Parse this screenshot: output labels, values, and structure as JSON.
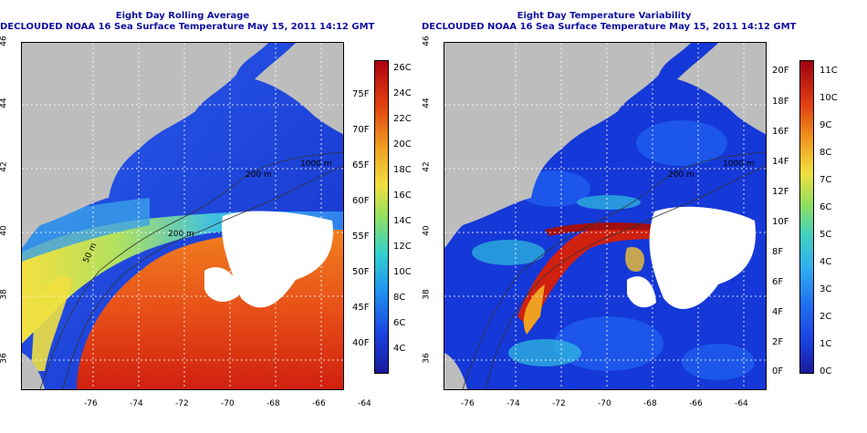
{
  "left_panel": {
    "title_line1": "Eight Day Rolling Average",
    "title_line2": "DECLOUDED NOAA 16 Sea Surface Temperature May 15, 2011 14:12 GMT",
    "colorbar_f": [
      "75F",
      "70F",
      "65F",
      "60F",
      "55F",
      "50F",
      "45F",
      "40F"
    ],
    "colorbar_c": [
      "26C",
      "24C",
      "22C",
      "20C",
      "18C",
      "16C",
      "14C",
      "12C",
      "10C",
      "8C",
      "6C",
      "4C"
    ]
  },
  "right_panel": {
    "title_line1": "Eight Day Temperature Variability",
    "title_line2": "DECLOUDED NOAA 16 Sea Surface Temperature May 15, 2011 14:12 GMT",
    "colorbar_f": [
      "20F",
      "18F",
      "16F",
      "14F",
      "12F",
      "10F",
      "8F",
      "6F",
      "4F",
      "2F",
      "0F"
    ],
    "colorbar_c": [
      "11C",
      "10C",
      "9C",
      "8C",
      "7C",
      "6C",
      "5C",
      "4C",
      "3C",
      "2C",
      "1C",
      "0C"
    ]
  },
  "axes": {
    "lon_ticks": [
      "-76",
      "-74",
      "-72",
      "-70",
      "-68",
      "-66",
      "-64"
    ],
    "lat_ticks": [
      "36",
      "38",
      "40",
      "42",
      "44",
      "46"
    ]
  },
  "contours": {
    "labels": [
      "50 m",
      "200 m",
      "200 m",
      "1000 m"
    ]
  },
  "colors": {
    "land": "#bdbdbd",
    "cloud": "#ffffff",
    "title": "#1010a0"
  }
}
